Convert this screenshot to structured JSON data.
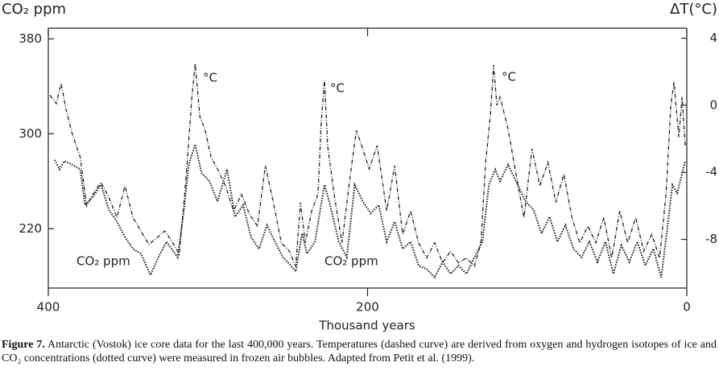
{
  "chart_data": {
    "type": "line",
    "y_label": "CO₂ ppm",
    "y2_label": "ΔT(°C)",
    "x_label": "Thousand years",
    "xlim": [
      400,
      0
    ],
    "xticks": [
      400,
      200,
      0
    ],
    "ylim": [
      170,
      389
    ],
    "yticks": [
      220,
      300,
      380
    ],
    "y2lim": [
      -10.9,
      4.6
    ],
    "y2ticks": [
      -8,
      -4,
      0,
      4
    ],
    "grid": false,
    "annotations": [
      "°C",
      "°C",
      "°C",
      "CO₂ ppm",
      "CO₂ ppm"
    ],
    "series": [
      {
        "axis": "y2",
        "color": "#222222",
        "dash": "dashed",
        "x": [
          399,
          395,
          392,
          389,
          385,
          380,
          376,
          372,
          367,
          362,
          357,
          352,
          347,
          342,
          337,
          332,
          327,
          322,
          318,
          315,
          313,
          310,
          308,
          305,
          302,
          298,
          294,
          289,
          284,
          279,
          274,
          269,
          264,
          259,
          254,
          249,
          245,
          242,
          239,
          235,
          231,
          229,
          227,
          225,
          221,
          216,
          211,
          207,
          203,
          199,
          194,
          188,
          183,
          178,
          173,
          168,
          163,
          158,
          153,
          148,
          143,
          138,
          133,
          129,
          126,
          123,
          121,
          119,
          117,
          112,
          107,
          102,
          97,
          92,
          87,
          82,
          77,
          72,
          67,
          62,
          57,
          52,
          47,
          42,
          37,
          32,
          27,
          22,
          17,
          13,
          10,
          8,
          5,
          3,
          1
        ],
        "values": [
          0.6,
          0.1,
          1.3,
          -0.2,
          -1.7,
          -3.1,
          -6.0,
          -5.3,
          -4.6,
          -5.5,
          -6.7,
          -4.8,
          -6.7,
          -7.5,
          -8.3,
          -7.9,
          -7.5,
          -8.2,
          -8.9,
          -5.8,
          -3.4,
          0.5,
          2.5,
          -0.7,
          -1.4,
          -3.1,
          -3.8,
          -4.8,
          -6.3,
          -5.3,
          -6.5,
          -7.2,
          -3.6,
          -5.8,
          -8.2,
          -8.7,
          -9.6,
          -5.8,
          -8.2,
          -6.3,
          -5.3,
          -1.0,
          1.5,
          -2.4,
          -5.3,
          -8.2,
          -4.3,
          -1.5,
          -2.6,
          -3.8,
          -2.4,
          -6.3,
          -3.6,
          -7.7,
          -6.3,
          -8.2,
          -9.1,
          -8.2,
          -9.4,
          -8.7,
          -9.4,
          -9.1,
          -9.6,
          -8.2,
          -3.4,
          -0.5,
          2.4,
          0,
          0.5,
          -1.4,
          -4.1,
          -6.7,
          -2.6,
          -4.8,
          -3.4,
          -5.8,
          -4.1,
          -6.7,
          -8.2,
          -7.2,
          -8.2,
          -6.7,
          -9.1,
          -6.3,
          -8.2,
          -6.7,
          -8.7,
          -7.7,
          -9.1,
          -5.3,
          0,
          1.4,
          -1.9,
          0.5,
          -2.4
        ]
      },
      {
        "axis": "y",
        "color": "#222222",
        "dash": "dotted",
        "x": [
          396,
          393,
          390,
          385,
          380,
          377,
          372,
          367,
          362,
          357,
          352,
          347,
          342,
          336,
          331,
          326,
          319,
          315,
          312,
          308,
          304,
          299,
          294,
          288,
          283,
          278,
          273,
          268,
          263,
          258,
          253,
          248,
          245,
          241,
          238,
          233,
          227,
          224,
          218,
          213,
          208,
          203,
          198,
          193,
          188,
          183,
          178,
          173,
          168,
          163,
          158,
          153,
          148,
          143,
          138,
          133,
          128,
          124,
          120,
          117,
          112,
          107,
          101,
          96,
          91,
          86,
          81,
          76,
          71,
          66,
          61,
          56,
          51,
          46,
          41,
          36,
          31,
          26,
          21,
          16,
          12,
          9,
          6,
          1
        ],
        "values": [
          278,
          270,
          277,
          274,
          270,
          240,
          247,
          257,
          236,
          226,
          213,
          203,
          199,
          181,
          196,
          209,
          196,
          236,
          274,
          291,
          267,
          260,
          243,
          270,
          230,
          240,
          213,
          203,
          223,
          209,
          196,
          189,
          184,
          216,
          199,
          209,
          257,
          243,
          209,
          196,
          257,
          243,
          233,
          240,
          209,
          226,
          203,
          209,
          189,
          186,
          179,
          192,
          182,
          189,
          182,
          196,
          209,
          257,
          270,
          260,
          274,
          260,
          243,
          236,
          216,
          230,
          209,
          223,
          203,
          196,
          209,
          192,
          209,
          182,
          206,
          192,
          209,
          189,
          203,
          179,
          223,
          257,
          250,
          277
        ]
      }
    ],
    "caption": {
      "label": "Figure 7.",
      "text": "Antarctic (Vostok) ice core data for the last 400,000 years. Temperatures (dashed curve) are derived from oxygen and hydrogen isotopes of ice and CO₂ concentrations (dotted curve) were measured in frozen air bubbles. Adapted from Petit et al. (1999)."
    }
  }
}
